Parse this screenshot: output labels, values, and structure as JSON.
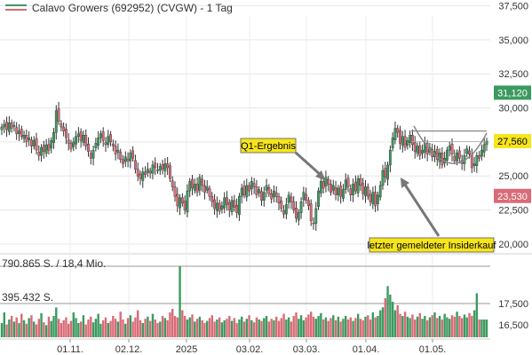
{
  "header": {
    "title": "Calavo Growers (692952) (CVGW) - 1 Tag"
  },
  "chart_data": {
    "type": "candlestick",
    "title": "Calavo Growers (692952) (CVGW) - 1 Tag",
    "price_axis": {
      "ticks": [
        "37,500",
        "35,000",
        "32,500",
        "30,000",
        "27,500",
        "25,000",
        "22,500",
        "20,000"
      ],
      "tick_values": [
        37.5,
        35.0,
        32.5,
        30.0,
        27.5,
        25.0,
        22.5,
        20.0
      ],
      "ylim": [
        19.6,
        37.8
      ]
    },
    "volume_axis": {
      "ticks": [
        "17,500",
        "16,500"
      ],
      "labels": [
        "790.865 S. / 18,4 Mio.",
        "395.432 S."
      ]
    },
    "x_ticks": [
      "01.11.",
      "02.12.",
      "2025",
      "03.02.",
      "03.03.",
      "01.04.",
      "01.05."
    ],
    "price_badges": [
      {
        "label": "31,120",
        "value": 31.12,
        "bg": "#3c9a5f",
        "fg": "#ffffff"
      },
      {
        "label": "27,560",
        "value": 27.56,
        "bg": "#f7e51c",
        "fg": "#000000"
      },
      {
        "label": "23,530",
        "value": 23.53,
        "bg": "#d96b77",
        "fg": "#ffffff"
      }
    ],
    "annotations": [
      {
        "label": "Q1-Ergebnis"
      },
      {
        "label": "letzter gemeldeter Insiderkauf"
      }
    ],
    "resistance_level": 28.3,
    "closes": [
      28.6,
      28.8,
      28.4,
      28.9,
      28.5,
      28.7,
      28.1,
      28.3,
      27.9,
      28.0,
      27.5,
      27.8,
      27.2,
      27.6,
      26.9,
      26.5,
      27.1,
      26.8,
      27.3,
      26.9,
      27.6,
      28.2,
      29.8,
      29.0,
      28.6,
      28.3,
      27.8,
      27.4,
      27.0,
      27.5,
      27.9,
      28.1,
      27.6,
      28.0,
      27.2,
      26.8,
      26.3,
      26.9,
      27.4,
      27.8,
      28.1,
      27.6,
      27.3,
      27.9,
      27.5,
      27.2,
      26.6,
      26.9,
      26.2,
      25.9,
      26.4,
      26.1,
      26.7,
      26.3,
      25.5,
      25.0,
      24.8,
      25.3,
      25.1,
      25.5,
      25.2,
      25.8,
      25.6,
      25.4,
      25.7,
      25.5,
      25.9,
      25.6,
      24.8,
      24.2,
      23.5,
      22.8,
      23.4,
      23.0,
      22.5,
      23.9,
      24.6,
      24.1,
      24.4,
      23.8,
      24.9,
      24.3,
      23.8,
      24.2,
      23.5,
      23.1,
      22.6,
      23.0,
      22.4,
      22.8,
      23.4,
      22.9,
      22.5,
      23.2,
      22.7,
      22.3,
      23.5,
      24.1,
      23.6,
      24.3,
      23.9,
      24.6,
      24.2,
      23.6,
      24.0,
      23.2,
      23.8,
      24.3,
      23.7,
      23.3,
      23.9,
      23.5,
      23.0,
      22.6,
      22.2,
      22.9,
      23.6,
      23.1,
      22.5,
      21.9,
      22.3,
      23.1,
      23.8,
      23.2,
      22.8,
      21.7,
      21.5,
      22.6,
      23.9,
      24.6,
      24.1,
      24.9,
      24.4,
      23.8,
      24.3,
      23.6,
      24.1,
      23.5,
      24.0,
      24.7,
      24.2,
      23.6,
      24.4,
      23.9,
      24.8,
      24.3,
      23.7,
      24.2,
      23.5,
      23.1,
      23.8,
      22.8,
      23.6,
      24.3,
      25.4,
      24.9,
      25.8,
      26.9,
      27.8,
      28.5,
      28.2,
      27.4,
      27.9,
      27.1,
      27.6,
      28.0,
      27.3,
      26.8,
      27.2,
      26.5,
      26.9,
      27.4,
      26.6,
      27.1,
      26.4,
      26.8,
      26.2,
      26.7,
      25.8,
      26.3,
      26.9,
      27.2,
      26.6,
      26.1,
      26.7,
      26.3,
      25.9,
      26.5,
      27.0,
      26.6,
      25.6,
      25.9,
      26.5,
      26.3,
      26.9,
      27.3,
      27.56
    ],
    "volumes": [
      0.2,
      0.35,
      0.18,
      0.25,
      0.3,
      0.22,
      0.28,
      0.2,
      0.33,
      0.24,
      0.19,
      0.27,
      0.31,
      0.22,
      0.18,
      0.26,
      0.34,
      0.21,
      0.17,
      0.29,
      0.23,
      0.3,
      0.42,
      0.26,
      0.2,
      0.24,
      0.28,
      0.19,
      0.23,
      0.35,
      0.27,
      0.2,
      0.22,
      0.31,
      0.18,
      0.25,
      0.29,
      0.21,
      0.26,
      0.33,
      0.19,
      0.24,
      0.28,
      0.2,
      0.23,
      0.3,
      0.26,
      0.22,
      0.36,
      0.25,
      0.19,
      0.27,
      0.31,
      0.22,
      0.28,
      0.38,
      0.24,
      0.2,
      0.26,
      0.29,
      0.23,
      0.33,
      0.25,
      0.2,
      0.22,
      0.3,
      0.27,
      0.24,
      0.35,
      0.4,
      0.3,
      0.28,
      1.0,
      0.38,
      0.3,
      0.25,
      0.28,
      0.32,
      0.22,
      0.26,
      0.29,
      0.24,
      0.2,
      0.23,
      0.27,
      0.31,
      0.22,
      0.25,
      0.28,
      0.21,
      0.24,
      0.26,
      0.3,
      0.23,
      0.27,
      0.2,
      0.25,
      0.29,
      0.22,
      0.26,
      0.31,
      0.24,
      0.21,
      0.28,
      0.25,
      0.23,
      0.27,
      0.3,
      0.22,
      0.26,
      0.24,
      0.29,
      0.23,
      0.27,
      0.33,
      0.25,
      0.28,
      0.22,
      0.3,
      0.35,
      0.26,
      0.31,
      0.24,
      0.28,
      0.32,
      0.36,
      0.29,
      0.26,
      0.3,
      0.34,
      0.25,
      0.28,
      0.23,
      0.27,
      0.31,
      0.24,
      0.29,
      0.22,
      0.26,
      0.3,
      0.25,
      0.28,
      0.23,
      0.27,
      0.33,
      0.26,
      0.24,
      0.29,
      0.31,
      0.25,
      0.35,
      0.28,
      0.3,
      0.38,
      0.42,
      0.55,
      0.72,
      0.6,
      0.5,
      0.38,
      0.45,
      0.33,
      0.3,
      0.36,
      0.29,
      0.27,
      0.32,
      0.25,
      0.29,
      0.34,
      0.26,
      0.3,
      0.24,
      0.28,
      0.31,
      0.35,
      0.27,
      0.3,
      0.25,
      0.33,
      0.28,
      0.26,
      0.31,
      0.29,
      0.36,
      0.3,
      0.27,
      0.32,
      0.28,
      0.34,
      0.3,
      0.38,
      0.62
    ]
  }
}
